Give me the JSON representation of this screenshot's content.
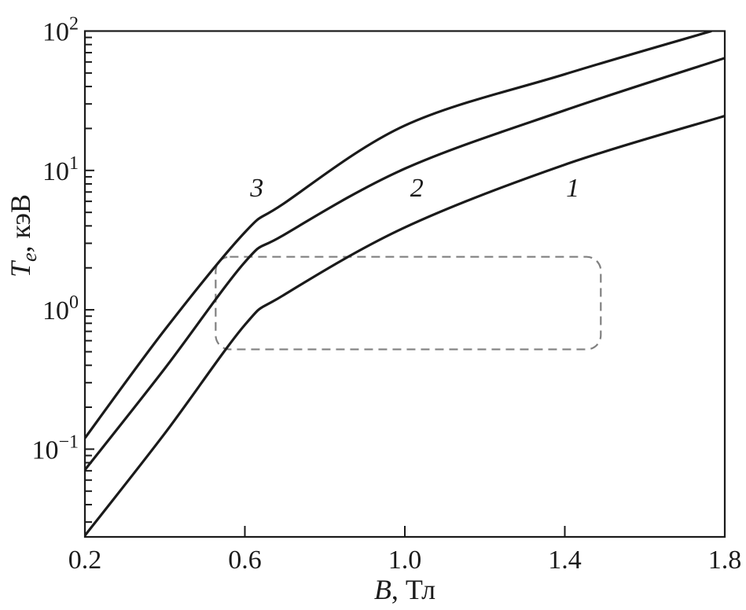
{
  "chart_data": {
    "type": "line",
    "title": "",
    "xlabel": {
      "var": "B",
      "unit": ", Тл"
    },
    "ylabel": {
      "var": "T",
      "sub": "e",
      "unit": ", кэВ"
    },
    "xlim": [
      0.2,
      1.8
    ],
    "ylim": [
      0.024,
      100
    ],
    "yscale": "log",
    "grid": false,
    "x_ticks": [
      "0.2",
      "0.6",
      "1.0",
      "1.4",
      "1.8"
    ],
    "x_tick_values": [
      0.2,
      0.6,
      1.0,
      1.4,
      1.8
    ],
    "y_ticks": [
      {
        "base": "10",
        "exp": "−1",
        "value": 0.1
      },
      {
        "base": "10",
        "exp": "0",
        "value": 1
      },
      {
        "base": "10",
        "exp": "1",
        "value": 10
      },
      {
        "base": "10",
        "exp": "2",
        "value": 100
      }
    ],
    "series": [
      {
        "name": "1",
        "color": "#1a1a1a",
        "x": [
          0.2,
          0.4,
          0.6,
          0.694,
          1.0,
          1.4,
          1.8
        ],
        "y": [
          0.024,
          0.13,
          0.78,
          1.26,
          3.9,
          11,
          24.6
        ]
      },
      {
        "name": "2",
        "color": "#1a1a1a",
        "x": [
          0.2,
          0.4,
          0.6,
          0.694,
          1.0,
          1.4,
          1.8
        ],
        "y": [
          0.071,
          0.38,
          2.2,
          3.4,
          10.3,
          27,
          64
        ]
      },
      {
        "name": "3",
        "color": "#1a1a1a",
        "x": [
          0.2,
          0.4,
          0.6,
          0.694,
          1.0,
          1.4,
          1.767
        ],
        "y": [
          0.12,
          0.72,
          3.6,
          5.7,
          21,
          49,
          100
        ]
      }
    ],
    "curve_label_positions": [
      {
        "text": "1",
        "x": 1.42,
        "y": 6.5
      },
      {
        "text": "2",
        "x": 1.03,
        "y": 6.5
      },
      {
        "text": "3",
        "x": 0.63,
        "y": 6.5
      }
    ],
    "highlight_region": {
      "x": [
        0.527,
        1.49
      ],
      "y": [
        0.52,
        2.4
      ],
      "style": "dashed",
      "color": "#808080"
    }
  }
}
